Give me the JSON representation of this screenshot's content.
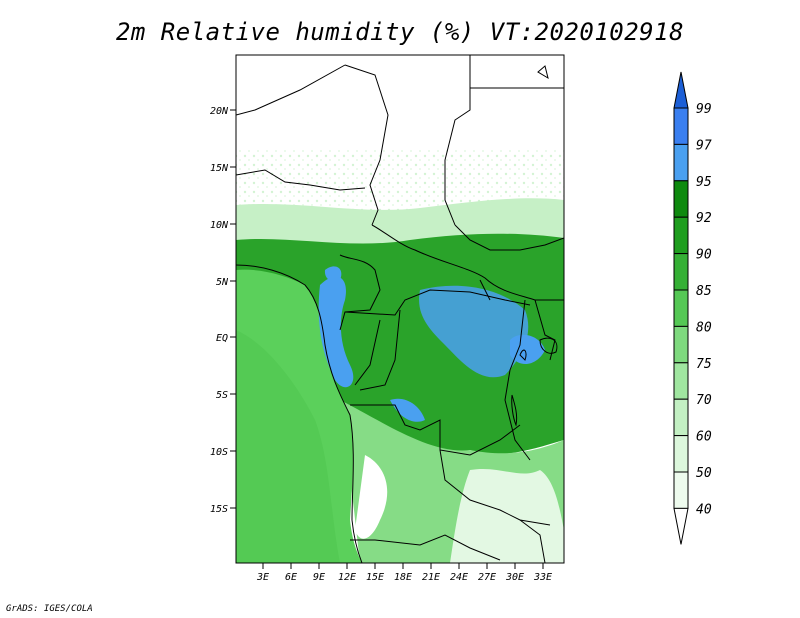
{
  "title": "2m Relative humidity (%) VT:2020102918",
  "credit": "GrADS: IGES/COLA",
  "axes": {
    "lat_labels": [
      "20N",
      "15N",
      "10N",
      "5N",
      "EQ",
      "5S",
      "10S",
      "15S"
    ],
    "lon_labels": [
      "3E",
      "6E",
      "9E",
      "12E",
      "15E",
      "18E",
      "21E",
      "24E",
      "27E",
      "30E",
      "33E"
    ]
  },
  "colorbar": {
    "levels": [
      "99",
      "97",
      "95",
      "92",
      "90",
      "85",
      "80",
      "75",
      "70",
      "60",
      "50",
      "40"
    ],
    "colors": [
      "#1c5fd6",
      "#3a7ff0",
      "#4aa0f0",
      "#0e8a0e",
      "#1f9e1f",
      "#35b035",
      "#55c855",
      "#7ed97e",
      "#a0e6a0",
      "#c3f0c3",
      "#dcf7dc",
      "#eefbee",
      "#ffffff"
    ]
  },
  "legend_colors": {
    "ocean": "#5bd05b",
    "land_dry": "#ffffff",
    "land_moist": "#2aa32a",
    "very_humid": "#4aa0f0"
  }
}
